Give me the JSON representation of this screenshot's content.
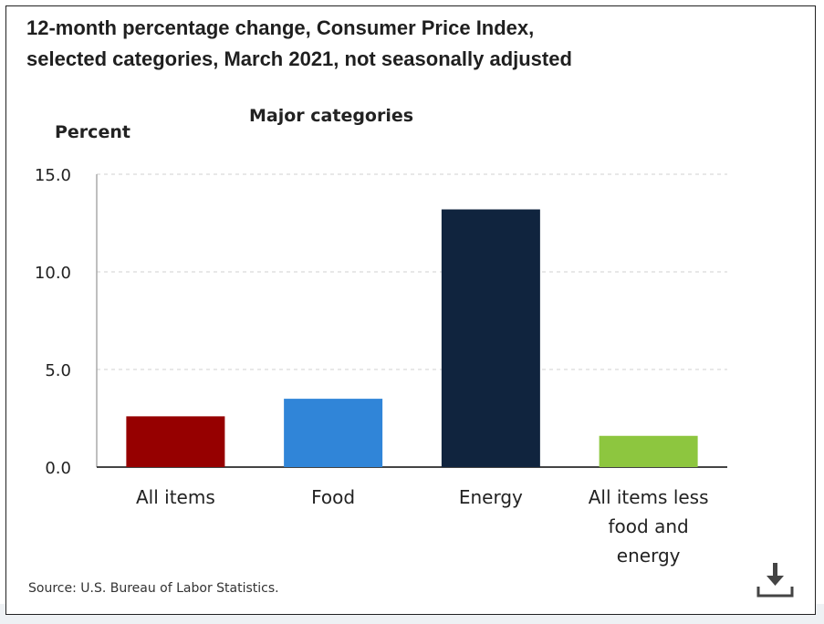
{
  "title_line1": "12-month percentage change, Consumer Price Index,",
  "title_line2": "selected categories, March 2021, not seasonally adjusted",
  "source": "Source: U.S. Bureau of Labor Statistics.",
  "download_icon": "download-icon",
  "chart_data": {
    "type": "bar",
    "subtitle": "Major categories",
    "ylabel": "Percent",
    "xlabel": "",
    "ylim": [
      0,
      15
    ],
    "yticks": [
      "0.0",
      "5.0",
      "10.0",
      "15.0"
    ],
    "ytick_values": [
      0,
      5,
      10,
      15
    ],
    "grid": true,
    "categories": [
      [
        "All items"
      ],
      [
        "Food"
      ],
      [
        "Energy"
      ],
      [
        "All items less",
        "food and",
        "energy"
      ]
    ],
    "values": [
      2.6,
      3.5,
      13.2,
      1.6
    ],
    "colors": [
      "#960000",
      "#3085d8",
      "#10243e",
      "#8dc63f"
    ]
  }
}
